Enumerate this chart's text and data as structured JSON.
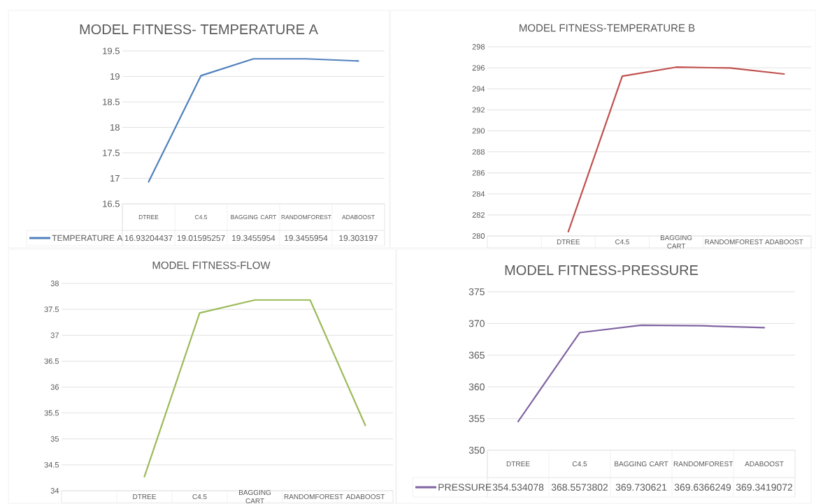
{
  "chart_data": [
    {
      "type": "line",
      "title": "MODEL FITNESS- TEMPERATURE A",
      "categories": [
        "DTREE",
        "C4.5",
        "BAGGING CART",
        "RANDOMFOREST",
        "ADABOOST"
      ],
      "series": [
        {
          "name": "TEMPERATURE A",
          "color": "#4f81bd",
          "values": [
            16.93204437,
            19.01595257,
            19.3455954,
            19.3455954,
            19.303197
          ],
          "value_labels": [
            "16.93204437",
            "19.01595257",
            "19.3455954",
            "19.3455954",
            "19.303197"
          ]
        }
      ],
      "ylim": [
        16.5,
        19.5
      ],
      "yticks": [
        16.5,
        17,
        17.5,
        18,
        18.5,
        19,
        19.5
      ],
      "grid": "y",
      "legend": "bottom"
    },
    {
      "type": "line",
      "title": "MODEL FITNESS-TEMPERATURE B",
      "categories": [
        "DTREE",
        "C4.5",
        "BAGGING CART",
        "RANDOMFOREST",
        "ADABOOST"
      ],
      "series": [
        {
          "color": "#c0504d",
          "values": [
            280.4,
            295.2,
            296.06,
            295.98,
            295.41
          ]
        }
      ],
      "ylim": [
        280,
        298
      ],
      "yticks": [
        280,
        282,
        284,
        286,
        288,
        290,
        292,
        294,
        296,
        298
      ],
      "grid": "y"
    },
    {
      "type": "line",
      "title": "MODEL FITNESS-FLOW",
      "categories": [
        "DTREE",
        "C4.5",
        "BAGGING CART",
        "RANDOMFOREST",
        "ADABOOST"
      ],
      "series": [
        {
          "color": "#9bbb59",
          "values": [
            34.27,
            37.43,
            37.68,
            37.68,
            35.26
          ]
        }
      ],
      "ylim": [
        34,
        38
      ],
      "yticks": [
        34,
        34.5,
        35,
        35.5,
        36,
        36.5,
        37,
        37.5,
        38
      ],
      "grid": "y"
    },
    {
      "type": "line",
      "title": "MODEL FITNESS-PRESSURE",
      "categories": [
        "DTREE",
        "C4.5",
        "BAGGING CART",
        "RANDOMFOREST",
        "ADABOOST"
      ],
      "series": [
        {
          "name": "PRESSURE",
          "color": "#8064a2",
          "values": [
            354.534078,
            368.5573802,
            369.730621,
            369.6366249,
            369.3419072
          ],
          "value_labels": [
            "354.534078",
            "368.5573802",
            "369.730621",
            "369.6366249",
            "369.3419072"
          ]
        }
      ],
      "ylim": [
        350,
        375
      ],
      "yticks": [
        350,
        355,
        360,
        365,
        370,
        375
      ],
      "grid": "y",
      "legend": "bottom"
    }
  ]
}
